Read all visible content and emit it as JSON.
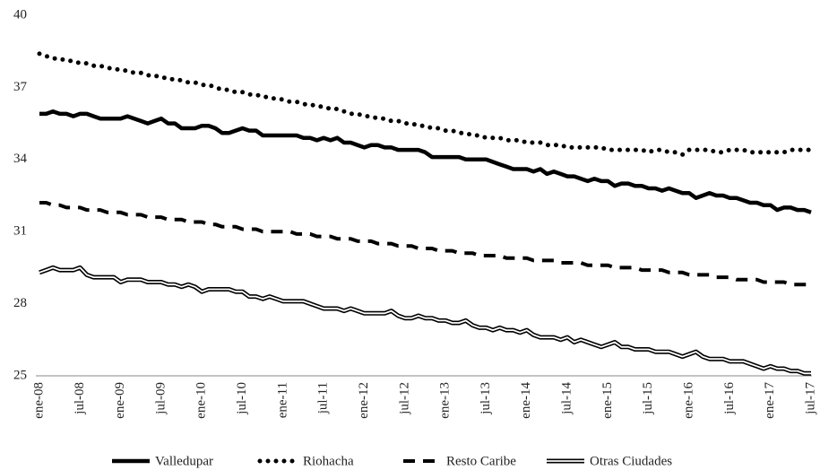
{
  "chart_data": {
    "type": "line",
    "categories": [
      "ene-08",
      null,
      null,
      null,
      null,
      null,
      "jul-08",
      null,
      null,
      null,
      null,
      null,
      "ene-09",
      null,
      null,
      null,
      null,
      null,
      "jul-09",
      null,
      null,
      null,
      null,
      null,
      "ene-10",
      null,
      null,
      null,
      null,
      null,
      "jul-10",
      null,
      null,
      null,
      null,
      null,
      "ene-11",
      null,
      null,
      null,
      null,
      null,
      "jul-11",
      null,
      null,
      null,
      null,
      null,
      "ene-12",
      null,
      null,
      null,
      null,
      null,
      "jul-12",
      null,
      null,
      null,
      null,
      null,
      "ene-13",
      null,
      null,
      null,
      null,
      null,
      "jul-13",
      null,
      null,
      null,
      null,
      null,
      "ene-14",
      null,
      null,
      null,
      null,
      null,
      "jul-14",
      null,
      null,
      null,
      null,
      null,
      "ene-15",
      null,
      null,
      null,
      null,
      null,
      "jul-15",
      null,
      null,
      null,
      null,
      null,
      "ene-16",
      null,
      null,
      null,
      null,
      null,
      "jul-16",
      null,
      null,
      null,
      null,
      null,
      "ene-17",
      null,
      null,
      null,
      null,
      null,
      "jul-17"
    ],
    "series": [
      {
        "name": "Valledupar",
        "color": "#000000",
        "line_style": "solid",
        "values": [
          35.9,
          35.9,
          36.0,
          35.9,
          35.9,
          35.8,
          35.9,
          35.9,
          35.8,
          35.7,
          35.7,
          35.7,
          35.7,
          35.8,
          35.7,
          35.6,
          35.5,
          35.6,
          35.7,
          35.5,
          35.5,
          35.3,
          35.3,
          35.3,
          35.4,
          35.4,
          35.3,
          35.1,
          35.1,
          35.2,
          35.3,
          35.2,
          35.2,
          35.0,
          35.0,
          35.0,
          35.0,
          35.0,
          35.0,
          34.9,
          34.9,
          34.8,
          34.9,
          34.8,
          34.9,
          34.7,
          34.7,
          34.6,
          34.5,
          34.6,
          34.6,
          34.5,
          34.5,
          34.4,
          34.4,
          34.4,
          34.4,
          34.3,
          34.1,
          34.1,
          34.1,
          34.1,
          34.1,
          34.0,
          34.0,
          34.0,
          34.0,
          33.9,
          33.8,
          33.7,
          33.6,
          33.6,
          33.6,
          33.5,
          33.6,
          33.4,
          33.5,
          33.4,
          33.3,
          33.3,
          33.2,
          33.1,
          33.2,
          33.1,
          33.1,
          32.9,
          33.0,
          33.0,
          32.9,
          32.9,
          32.8,
          32.8,
          32.7,
          32.8,
          32.7,
          32.6,
          32.6,
          32.4,
          32.5,
          32.6,
          32.5,
          32.5,
          32.4,
          32.4,
          32.3,
          32.2,
          32.2,
          32.1,
          32.1,
          31.9,
          32.0,
          32.0,
          31.9,
          31.9,
          31.8
        ]
      },
      {
        "name": "Riohacha",
        "color": "#000000",
        "line_style": "dotted",
        "values": [
          38.4,
          38.3,
          38.2,
          38.2,
          38.1,
          38.1,
          38.0,
          38.0,
          37.9,
          37.9,
          37.8,
          37.8,
          37.7,
          37.7,
          37.6,
          37.6,
          37.5,
          37.5,
          37.4,
          37.4,
          37.3,
          37.3,
          37.2,
          37.2,
          37.1,
          37.1,
          37.0,
          36.9,
          36.9,
          36.8,
          36.8,
          36.7,
          36.7,
          36.6,
          36.6,
          36.5,
          36.5,
          36.4,
          36.4,
          36.3,
          36.3,
          36.2,
          36.2,
          36.1,
          36.1,
          36.0,
          35.9,
          35.9,
          35.8,
          35.8,
          35.7,
          35.7,
          35.6,
          35.6,
          35.5,
          35.5,
          35.4,
          35.4,
          35.3,
          35.3,
          35.2,
          35.2,
          35.1,
          35.1,
          35.0,
          35.0,
          34.9,
          34.9,
          34.9,
          34.8,
          34.8,
          34.8,
          34.7,
          34.7,
          34.7,
          34.6,
          34.6,
          34.6,
          34.5,
          34.5,
          34.5,
          34.5,
          34.5,
          34.5,
          34.4,
          34.4,
          34.4,
          34.4,
          34.4,
          34.4,
          34.3,
          34.4,
          34.4,
          34.3,
          34.3,
          34.2,
          34.4,
          34.4,
          34.4,
          34.4,
          34.3,
          34.3,
          34.4,
          34.4,
          34.4,
          34.3,
          34.3,
          34.3,
          34.3,
          34.3,
          34.3,
          34.4,
          34.4,
          34.4,
          34.4
        ]
      },
      {
        "name": "Resto Caribe",
        "color": "#000000",
        "line_style": "dashed",
        "values": [
          32.2,
          32.2,
          32.1,
          32.1,
          32.0,
          32.0,
          32.0,
          31.9,
          31.9,
          31.9,
          31.8,
          31.8,
          31.8,
          31.7,
          31.7,
          31.7,
          31.6,
          31.6,
          31.6,
          31.5,
          31.5,
          31.5,
          31.4,
          31.4,
          31.4,
          31.3,
          31.3,
          31.2,
          31.2,
          31.2,
          31.1,
          31.1,
          31.1,
          31.0,
          31.0,
          31.0,
          31.0,
          31.0,
          30.9,
          30.9,
          30.9,
          30.8,
          30.8,
          30.8,
          30.7,
          30.7,
          30.7,
          30.6,
          30.6,
          30.6,
          30.5,
          30.5,
          30.5,
          30.4,
          30.4,
          30.4,
          30.3,
          30.3,
          30.3,
          30.2,
          30.2,
          30.2,
          30.1,
          30.1,
          30.1,
          30.0,
          30.0,
          30.0,
          30.0,
          29.9,
          29.9,
          29.9,
          29.9,
          29.8,
          29.8,
          29.8,
          29.8,
          29.7,
          29.7,
          29.7,
          29.7,
          29.6,
          29.6,
          29.6,
          29.6,
          29.5,
          29.5,
          29.5,
          29.5,
          29.4,
          29.4,
          29.4,
          29.4,
          29.3,
          29.3,
          29.3,
          29.2,
          29.2,
          29.2,
          29.2,
          29.1,
          29.1,
          29.1,
          29.0,
          29.0,
          29.0,
          29.0,
          28.9,
          28.9,
          28.9,
          28.9,
          28.8,
          28.8,
          28.8,
          28.8
        ]
      },
      {
        "name": "Otras Ciudades",
        "color": "#000000",
        "line_style": "double",
        "values": [
          29.3,
          29.4,
          29.5,
          29.4,
          29.4,
          29.4,
          29.5,
          29.2,
          29.1,
          29.1,
          29.1,
          29.1,
          28.9,
          29.0,
          29.0,
          29.0,
          28.9,
          28.9,
          28.9,
          28.8,
          28.8,
          28.7,
          28.8,
          28.7,
          28.5,
          28.6,
          28.6,
          28.6,
          28.6,
          28.5,
          28.5,
          28.3,
          28.3,
          28.2,
          28.3,
          28.2,
          28.1,
          28.1,
          28.1,
          28.1,
          28.0,
          27.9,
          27.8,
          27.8,
          27.8,
          27.7,
          27.8,
          27.7,
          27.6,
          27.6,
          27.6,
          27.6,
          27.7,
          27.5,
          27.4,
          27.4,
          27.5,
          27.4,
          27.4,
          27.3,
          27.3,
          27.2,
          27.2,
          27.3,
          27.1,
          27.0,
          27.0,
          26.9,
          27.0,
          26.9,
          26.9,
          26.8,
          26.9,
          26.7,
          26.6,
          26.6,
          26.6,
          26.5,
          26.6,
          26.4,
          26.5,
          26.4,
          26.3,
          26.2,
          26.3,
          26.4,
          26.2,
          26.2,
          26.1,
          26.1,
          26.1,
          26.0,
          26.0,
          26.0,
          25.9,
          25.8,
          25.9,
          26.0,
          25.8,
          25.7,
          25.7,
          25.7,
          25.6,
          25.6,
          25.6,
          25.5,
          25.4,
          25.3,
          25.4,
          25.3,
          25.3,
          25.2,
          25.2,
          25.1,
          25.1
        ]
      }
    ],
    "ylim": [
      25,
      40
    ],
    "yticks": [
      25,
      28,
      31,
      34,
      37,
      40
    ],
    "grid": false,
    "legend": "bottom"
  }
}
